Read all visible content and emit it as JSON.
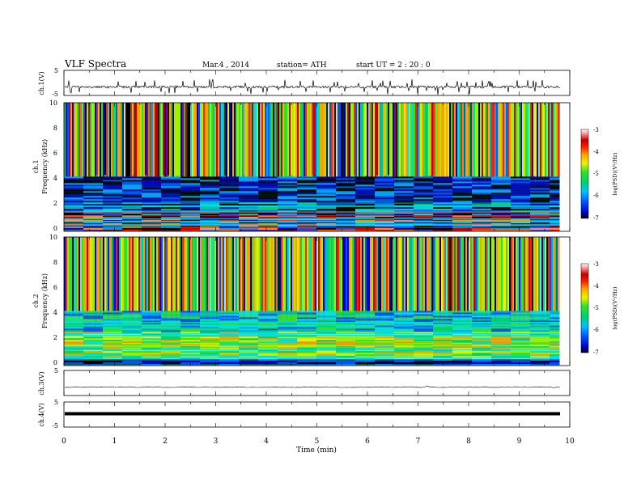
{
  "header": {
    "title": "VLF  Spectra",
    "date": "Mar.4  , 2014",
    "station": "station= ATH",
    "start": "start  UT  =   2  : 20 : 0"
  },
  "chart_data": [
    {
      "type": "line",
      "panel": "ch1-waveform",
      "ylabel": "ch.1(V)",
      "ylim": [
        -5,
        5
      ],
      "y_ticks": [
        "5",
        "-5"
      ],
      "xlim": [
        0,
        10
      ],
      "summary": "noisy waveform around -1.8 V with frequent spikes to about +0.5 V and -3.5 V"
    },
    {
      "type": "heatmap",
      "panel": "ch1-spectrogram",
      "ylabel": "ch.1",
      "ylabel2": "Frequency  (kHz)",
      "ylim": [
        0,
        10
      ],
      "y_ticks": [
        "0",
        "2",
        "4",
        "6",
        "8",
        "10"
      ],
      "xlim": [
        0,
        9.8
      ],
      "colorbar": {
        "label": "log(PSD)(V²/Hz)",
        "range": [
          -7,
          -3
        ],
        "ticks": [
          "-3",
          "-4",
          "-5",
          "-6",
          "-7"
        ]
      },
      "summary": "broadband sferics (vertical streaks) above 2 kHz, blue/black band 2-4 kHz, strong red lines below 1 kHz"
    },
    {
      "type": "heatmap",
      "panel": "ch2-spectrogram",
      "ylabel": "ch.2",
      "ylabel2": "Frequency  (kHz)",
      "ylim": [
        0,
        10
      ],
      "y_ticks": [
        "0",
        "2",
        "4",
        "6",
        "8",
        "10"
      ],
      "xlim": [
        0,
        9.8
      ],
      "colorbar": {
        "label": "log(PSD)(V²/Hz)",
        "range": [
          -7,
          -3
        ],
        "ticks": [
          "-3",
          "-4",
          "-5",
          "-6",
          "-7"
        ]
      },
      "summary": "similar sferic structure, green/cyan low-frequency band 0-3 kHz"
    },
    {
      "type": "line",
      "panel": "ch3-waveform",
      "ylabel": "ch.3(V)",
      "ylim": [
        -5,
        5
      ],
      "y_ticks": [
        "5"
      ],
      "xlim": [
        0,
        10
      ],
      "summary": "flat trace near -2 V"
    },
    {
      "type": "line",
      "panel": "ch4-waveform",
      "ylabel": "ch.4(V)",
      "ylim": [
        -5,
        5
      ],
      "y_ticks": [
        "5",
        "-5"
      ],
      "x_ticks": [
        "0",
        "1",
        "2",
        "3",
        "4",
        "5",
        "6",
        "7",
        "8",
        "9",
        "10"
      ],
      "xlabel": "Time  (min)",
      "xlim": [
        0,
        10
      ],
      "summary": "thick flat trace near -1 V"
    }
  ],
  "colors": {
    "scale": [
      "#000000",
      "#0000c0",
      "#0050ff",
      "#00a0ff",
      "#00e0e0",
      "#00d070",
      "#30e030",
      "#a0f000",
      "#f0f000",
      "#ffa000",
      "#ff2000",
      "#c00000",
      "#ff9090",
      "#ffffff"
    ]
  }
}
